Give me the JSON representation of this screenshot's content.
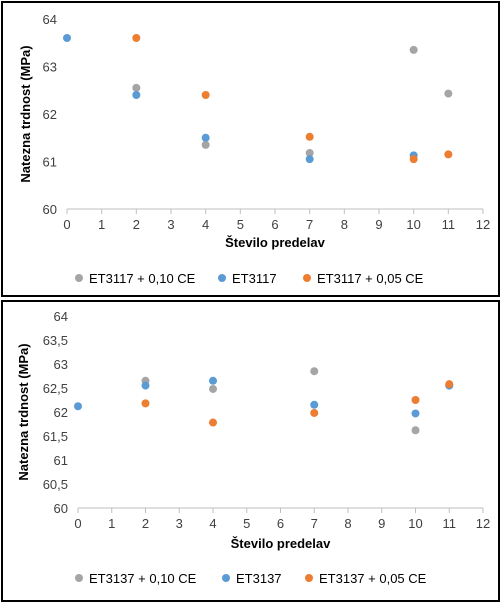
{
  "chart_data": [
    {
      "type": "scatter",
      "title": "",
      "xlabel": "Število predelav",
      "ylabel": "Natezna trdnost (MPa)",
      "xlim": [
        0,
        12
      ],
      "ylim": [
        60,
        64
      ],
      "xticks": [
        "0",
        "1",
        "2",
        "3",
        "4",
        "5",
        "6",
        "7",
        "8",
        "9",
        "10",
        "11",
        "12"
      ],
      "yticks": [
        "60",
        "61",
        "62",
        "63",
        "64"
      ],
      "grid": false,
      "legend": "bottom",
      "series": [
        {
          "name": "ET3117 + 0,10 CE",
          "color": "#a5a5a5",
          "x": [
            2,
            4,
            7,
            10,
            11
          ],
          "y": [
            62.55,
            61.35,
            61.18,
            63.35,
            62.43
          ]
        },
        {
          "name": "ET3117",
          "color": "#5b9bd5",
          "x": [
            0,
            2,
            4,
            7,
            10
          ],
          "y": [
            63.6,
            62.4,
            61.5,
            61.05,
            61.13
          ]
        },
        {
          "name": "ET3117 + 0,05 CE",
          "color": "#ed7d31",
          "x": [
            2,
            4,
            7,
            10,
            11
          ],
          "y": [
            63.6,
            62.4,
            61.52,
            61.05,
            61.15
          ]
        }
      ]
    },
    {
      "type": "scatter",
      "title": "",
      "xlabel": "Število predelav",
      "ylabel": "Natezna trdnost (MPa)",
      "xlim": [
        0,
        12
      ],
      "ylim": [
        60,
        64
      ],
      "xticks": [
        "0",
        "1",
        "2",
        "3",
        "4",
        "5",
        "6",
        "7",
        "8",
        "9",
        "10",
        "11",
        "12"
      ],
      "yticks": [
        "60",
        "60,5",
        "61",
        "61,5",
        "62",
        "62,5",
        "63",
        "63,5",
        "64"
      ],
      "grid": false,
      "legend": "bottom",
      "series": [
        {
          "name": "ET3137 + 0,10 CE",
          "color": "#a5a5a5",
          "x": [
            2,
            4,
            7,
            10,
            11
          ],
          "y": [
            62.65,
            62.48,
            62.85,
            61.62,
            62.55
          ]
        },
        {
          "name": "ET3137",
          "color": "#5b9bd5",
          "x": [
            0,
            2,
            4,
            7,
            10,
            11
          ],
          "y": [
            62.12,
            62.55,
            62.65,
            62.15,
            61.97,
            62.55
          ]
        },
        {
          "name": "ET3137 +  0,05 CE",
          "color": "#ed7d31",
          "x": [
            2,
            4,
            7,
            10,
            11
          ],
          "y": [
            62.18,
            61.78,
            61.98,
            62.25,
            62.58
          ]
        }
      ]
    }
  ]
}
